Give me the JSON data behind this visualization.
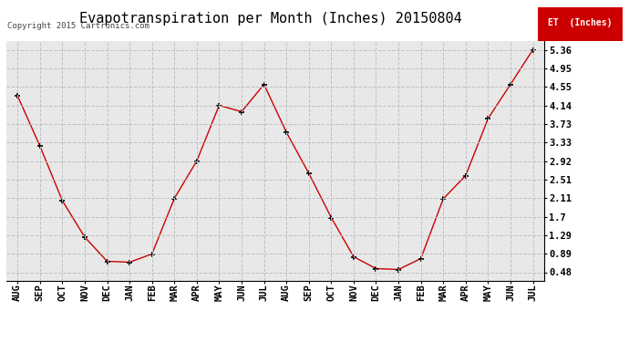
{
  "title": "Evapotranspiration per Month (Inches) 20150804",
  "copyright": "Copyright 2015 Cartronics.com",
  "legend_label": "ET  (Inches)",
  "x_labels": [
    "AUG",
    "SEP",
    "OCT",
    "NOV",
    "DEC",
    "JAN",
    "FEB",
    "MAR",
    "APR",
    "MAY",
    "JUN",
    "JUL",
    "AUG",
    "SEP",
    "OCT",
    "NOV",
    "DEC",
    "JAN",
    "FEB",
    "MAR",
    "APR",
    "MAY",
    "JUN",
    "JUL"
  ],
  "y_values": [
    4.35,
    3.25,
    2.05,
    1.25,
    0.72,
    0.7,
    0.88,
    2.1,
    2.92,
    4.14,
    4.0,
    4.6,
    3.55,
    2.65,
    1.68,
    0.82,
    0.56,
    0.54,
    0.78,
    2.09,
    2.6,
    3.85,
    4.6,
    5.36
  ],
  "yticks": [
    0.48,
    0.89,
    1.29,
    1.7,
    2.11,
    2.51,
    2.92,
    3.33,
    3.73,
    4.14,
    4.55,
    4.95,
    5.36
  ],
  "line_color": "#cc0000",
  "marker": "+",
  "marker_color": "#000000",
  "marker_size": 5,
  "grid_color": "#c0c0c0",
  "bg_color": "#e8e8e8",
  "legend_bg": "#cc0000",
  "legend_text_color": "#ffffff",
  "title_fontsize": 11,
  "tick_fontsize": 7.5,
  "ylim_min": 0.3,
  "ylim_max": 5.55
}
